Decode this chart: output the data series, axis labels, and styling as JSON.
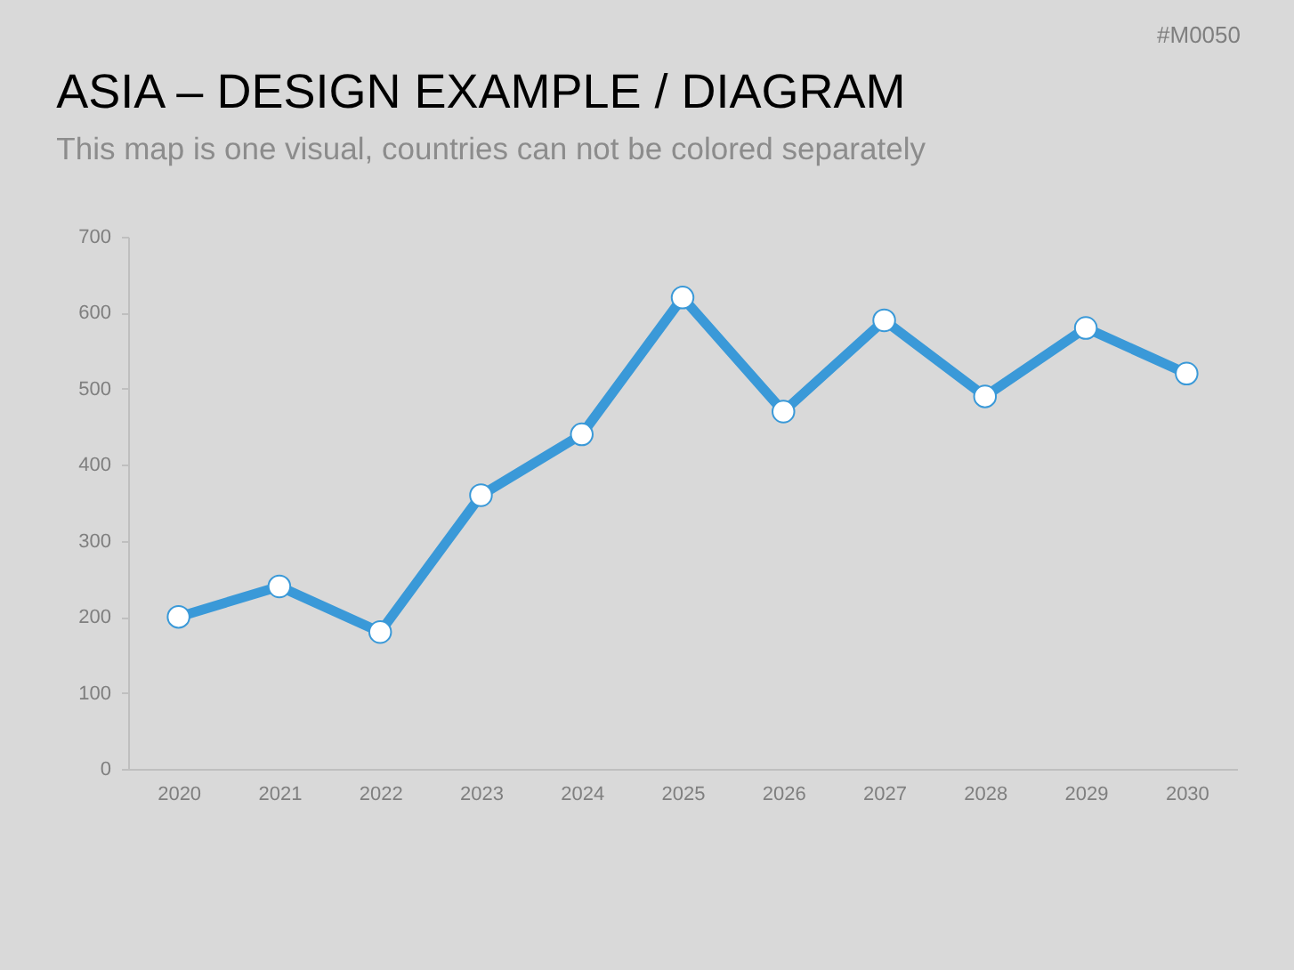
{
  "chart_data": {
    "type": "line",
    "title": "ASIA – DESIGN EXAMPLE / DIAGRAM",
    "subtitle": "This map is one visual, countries can not be colored separately",
    "annotations": [
      "#M0050"
    ],
    "categories": [
      "2020",
      "2021",
      "2022",
      "2023",
      "2024",
      "2025",
      "2026",
      "2027",
      "2028",
      "2029",
      "2030"
    ],
    "series": [
      {
        "color": "#3a99d8",
        "values": [
          200,
          240,
          180,
          360,
          440,
          620,
          470,
          590,
          490,
          580,
          520
        ]
      }
    ],
    "ylim": [
      0,
      700
    ],
    "yticks": [
      0,
      100,
      200,
      300,
      400,
      500,
      600,
      700
    ],
    "marker": "circle",
    "line_style": "solid"
  }
}
